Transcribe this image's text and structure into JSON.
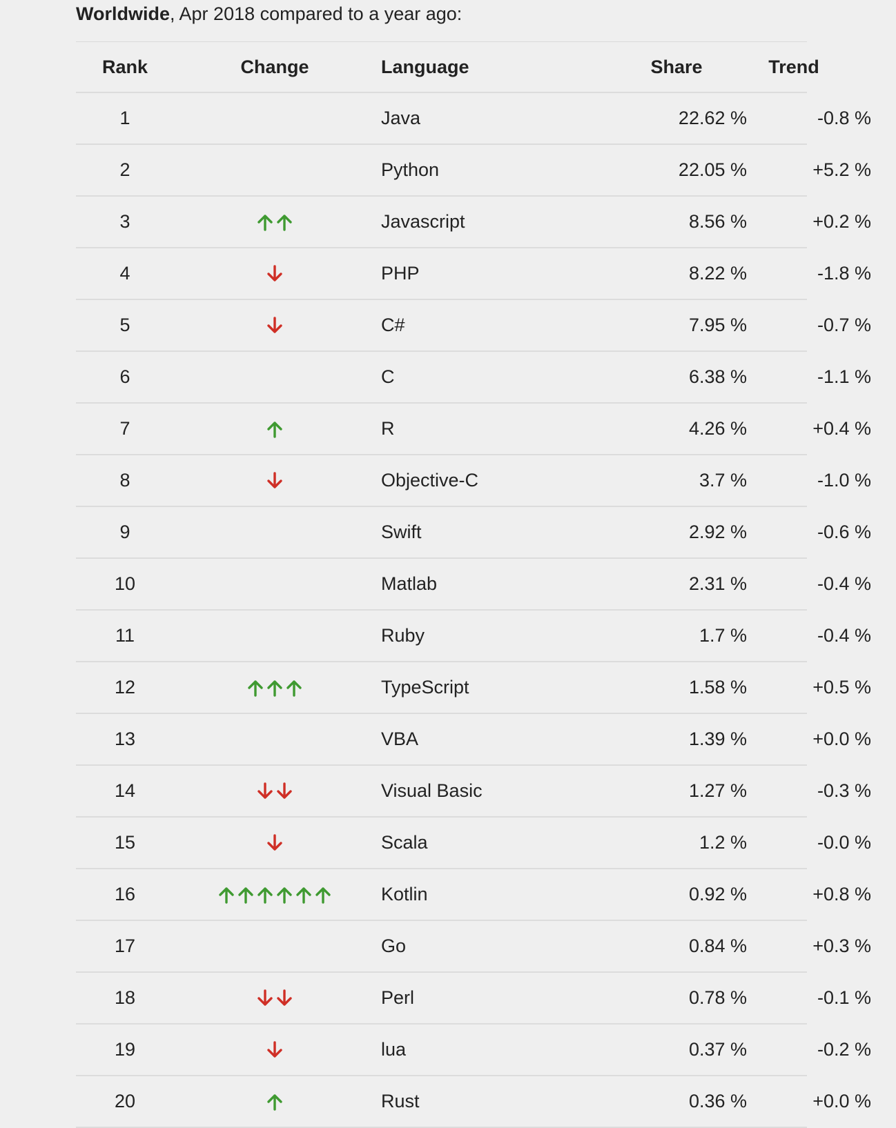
{
  "heading": {
    "bold": "Worldwide",
    "rest": ", Apr 2018 compared to a year ago:"
  },
  "columns": {
    "rank": "Rank",
    "change": "Change",
    "language": "Language",
    "share": "Share",
    "trend": "Trend"
  },
  "colors": {
    "up_arrow": "#3f9a31",
    "down_arrow": "#cf2f26"
  },
  "rows": [
    {
      "rank": "1",
      "change": {
        "direction": "none",
        "count": 0
      },
      "language": "Java",
      "share": "22.62 %",
      "trend": "-0.8 %"
    },
    {
      "rank": "2",
      "change": {
        "direction": "none",
        "count": 0
      },
      "language": "Python",
      "share": "22.05 %",
      "trend": "+5.2 %"
    },
    {
      "rank": "3",
      "change": {
        "direction": "up",
        "count": 2
      },
      "language": "Javascript",
      "share": "8.56 %",
      "trend": "+0.2 %"
    },
    {
      "rank": "4",
      "change": {
        "direction": "down",
        "count": 1
      },
      "language": "PHP",
      "share": "8.22 %",
      "trend": "-1.8 %"
    },
    {
      "rank": "5",
      "change": {
        "direction": "down",
        "count": 1
      },
      "language": "C#",
      "share": "7.95 %",
      "trend": "-0.7 %"
    },
    {
      "rank": "6",
      "change": {
        "direction": "none",
        "count": 0
      },
      "language": "C",
      "share": "6.38 %",
      "trend": "-1.1 %"
    },
    {
      "rank": "7",
      "change": {
        "direction": "up",
        "count": 1
      },
      "language": "R",
      "share": "4.26 %",
      "trend": "+0.4 %"
    },
    {
      "rank": "8",
      "change": {
        "direction": "down",
        "count": 1
      },
      "language": "Objective-C",
      "share": "3.7 %",
      "trend": "-1.0 %"
    },
    {
      "rank": "9",
      "change": {
        "direction": "none",
        "count": 0
      },
      "language": "Swift",
      "share": "2.92 %",
      "trend": "-0.6 %"
    },
    {
      "rank": "10",
      "change": {
        "direction": "none",
        "count": 0
      },
      "language": "Matlab",
      "share": "2.31 %",
      "trend": "-0.4 %"
    },
    {
      "rank": "11",
      "change": {
        "direction": "none",
        "count": 0
      },
      "language": "Ruby",
      "share": "1.7 %",
      "trend": "-0.4 %"
    },
    {
      "rank": "12",
      "change": {
        "direction": "up",
        "count": 3
      },
      "language": "TypeScript",
      "share": "1.58 %",
      "trend": "+0.5 %"
    },
    {
      "rank": "13",
      "change": {
        "direction": "none",
        "count": 0
      },
      "language": "VBA",
      "share": "1.39 %",
      "trend": "+0.0 %"
    },
    {
      "rank": "14",
      "change": {
        "direction": "down",
        "count": 2
      },
      "language": "Visual Basic",
      "share": "1.27 %",
      "trend": "-0.3 %"
    },
    {
      "rank": "15",
      "change": {
        "direction": "down",
        "count": 1
      },
      "language": "Scala",
      "share": "1.2 %",
      "trend": "-0.0 %"
    },
    {
      "rank": "16",
      "change": {
        "direction": "up",
        "count": 6
      },
      "language": "Kotlin",
      "share": "0.92 %",
      "trend": "+0.8 %"
    },
    {
      "rank": "17",
      "change": {
        "direction": "none",
        "count": 0
      },
      "language": "Go",
      "share": "0.84 %",
      "trend": "+0.3 %"
    },
    {
      "rank": "18",
      "change": {
        "direction": "down",
        "count": 2
      },
      "language": "Perl",
      "share": "0.78 %",
      "trend": "-0.1 %"
    },
    {
      "rank": "19",
      "change": {
        "direction": "down",
        "count": 1
      },
      "language": "lua",
      "share": "0.37 %",
      "trend": "-0.2 %"
    },
    {
      "rank": "20",
      "change": {
        "direction": "up",
        "count": 1
      },
      "language": "Rust",
      "share": "0.36 %",
      "trend": "+0.0 %"
    }
  ]
}
